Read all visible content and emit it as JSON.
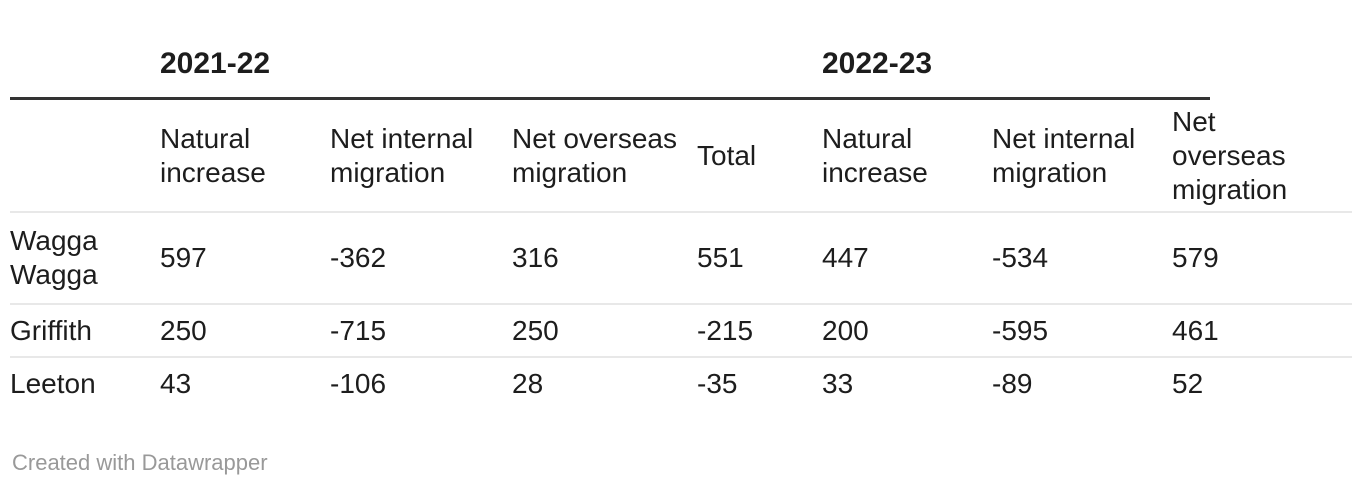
{
  "colors": {
    "background": "#ffffff",
    "text": "#1d1d1d",
    "thick_rule": "#333333",
    "row_separator": "#e8e8e8",
    "attribution_text": "#999999"
  },
  "header_groups": [
    {
      "label": "2021-22"
    },
    {
      "label": "2022-23"
    }
  ],
  "table": {
    "columns": [
      "",
      "Natural increase",
      "Net internal migration",
      "Net overseas migration",
      "Total",
      "Natural increase",
      "Net internal migration",
      "Net overseas migration"
    ],
    "rows": [
      {
        "label": "Wagga Wagga",
        "values": [
          "597",
          "-362",
          "316",
          "551",
          "447",
          "-534",
          "579"
        ]
      },
      {
        "label": "Griffith",
        "values": [
          "250",
          "-715",
          "250",
          "-215",
          "200",
          "-595",
          "461"
        ]
      },
      {
        "label": "Leeton",
        "values": [
          "43",
          "-106",
          "28",
          "-35",
          "33",
          "-89",
          "52"
        ]
      }
    ]
  },
  "chart_data": {
    "type": "table",
    "title": "",
    "column_groups": [
      {
        "label": "2021-22",
        "columns": [
          "Natural increase",
          "Net internal migration",
          "Net overseas migration",
          "Total"
        ]
      },
      {
        "label": "2022-23",
        "columns": [
          "Natural increase",
          "Net internal migration",
          "Net overseas migration"
        ]
      }
    ],
    "row_labels": [
      "Wagga Wagga",
      "Griffith",
      "Leeton"
    ],
    "series": [
      {
        "name": "2021-22 Natural increase",
        "values": [
          597,
          250,
          43
        ]
      },
      {
        "name": "2021-22 Net internal migration",
        "values": [
          -362,
          -715,
          -106
        ]
      },
      {
        "name": "2021-22 Net overseas migration",
        "values": [
          316,
          250,
          28
        ]
      },
      {
        "name": "2021-22 Total",
        "values": [
          551,
          -215,
          -35
        ]
      },
      {
        "name": "2022-23 Natural increase",
        "values": [
          447,
          200,
          33
        ]
      },
      {
        "name": "2022-23 Net internal migration",
        "values": [
          -534,
          -595,
          -89
        ]
      },
      {
        "name": "2022-23 Net overseas migration",
        "values": [
          579,
          461,
          52
        ]
      }
    ],
    "layout_hints": {
      "last_column_clipped_at_right_edge": true,
      "thick_rule_under_group_headers": true,
      "grid": "horizontal row separators only"
    }
  },
  "footer": {
    "attribution": "Created with Datawrapper"
  }
}
